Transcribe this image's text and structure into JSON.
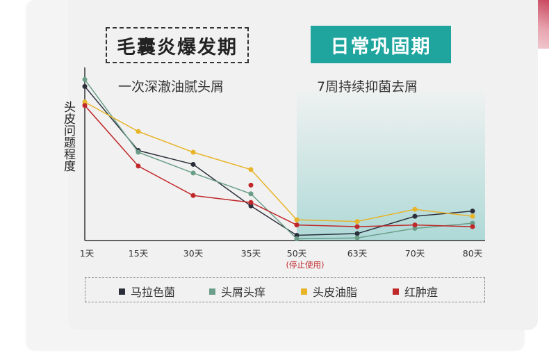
{
  "header": {
    "left_title": "毛囊炎爆发期",
    "left_subtitle": "一次深澈油腻头屑",
    "right_title": "日常巩固期",
    "right_subtitle": "7周持续抑菌去屑"
  },
  "chart_data": {
    "type": "line",
    "ylabel": "头皮问题程度",
    "categories": [
      "1天",
      "15天",
      "30天",
      "35天",
      "50天",
      "63天",
      "70天",
      "80天"
    ],
    "category_note": {
      "index": 4,
      "text": "(停止使用)"
    },
    "ylim": [
      0,
      100
    ],
    "grid": false,
    "legend_position": "bottom",
    "series": [
      {
        "name": "马拉色菌",
        "color": "#2b2f3a",
        "values": [
          89,
          52,
          44,
          20,
          3,
          4,
          14,
          17
        ]
      },
      {
        "name": "头屑头痒",
        "color": "#6a9e88",
        "values": [
          93,
          51,
          39,
          27,
          1,
          1.5,
          7,
          10
        ]
      },
      {
        "name": "头皮油脂",
        "color": "#e8b42a",
        "values": [
          80,
          63,
          51,
          41,
          12,
          11,
          18,
          14
        ]
      },
      {
        "name": "红肿痘",
        "color": "#c0282a",
        "values": [
          78,
          43,
          26,
          22,
          9,
          8,
          9,
          8
        ],
        "extra_point": {
          "category_index": 3,
          "value": 32
        }
      }
    ]
  }
}
